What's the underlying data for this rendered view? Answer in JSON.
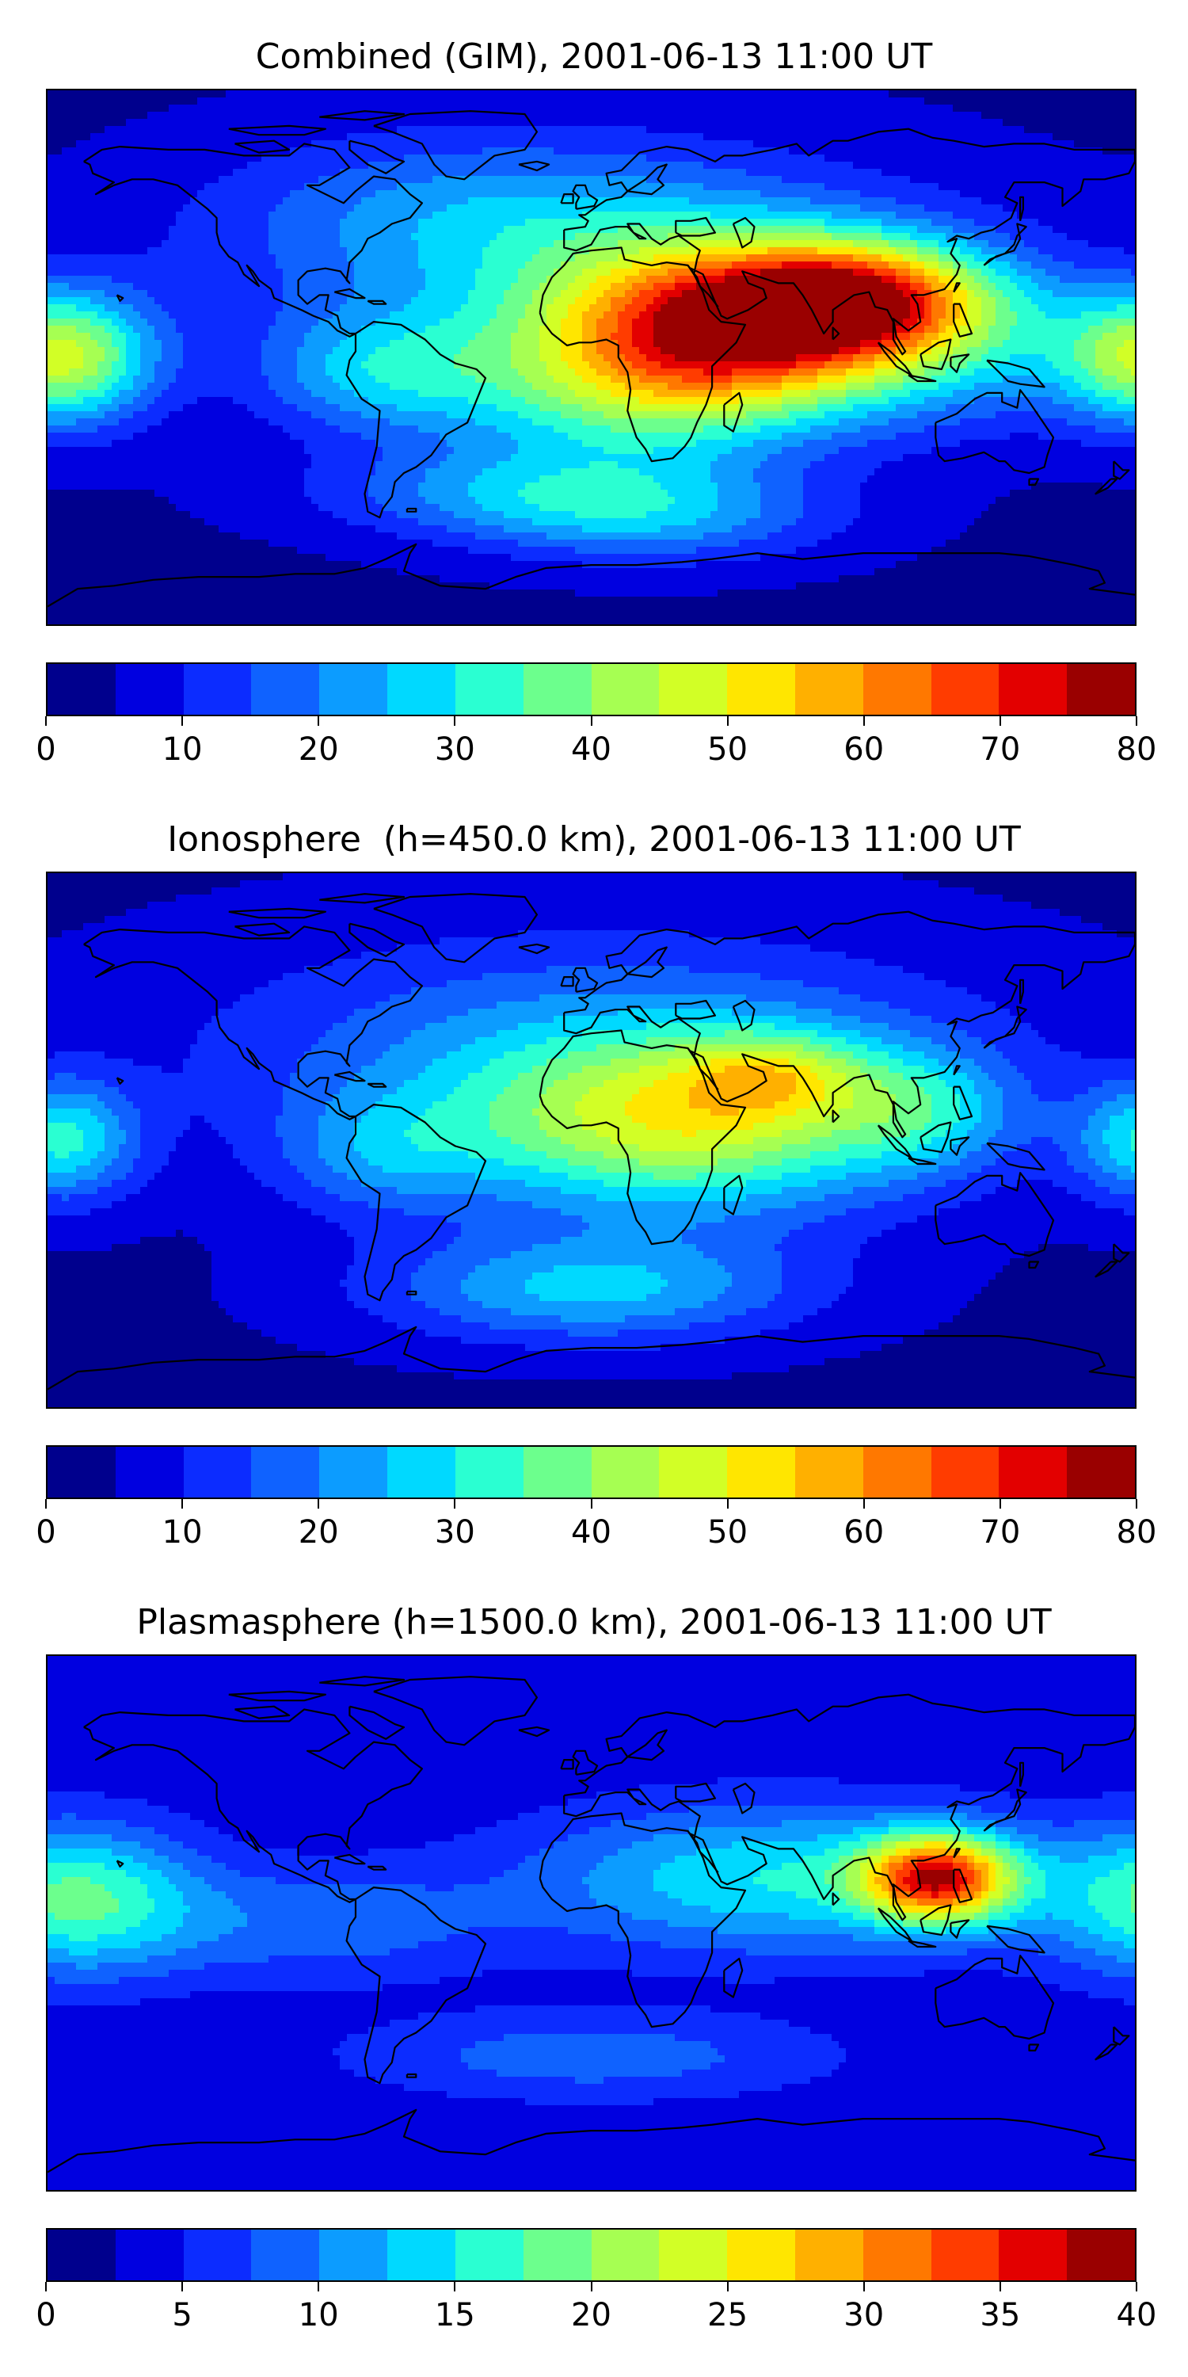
{
  "palette": [
    "#00008d",
    "#0000e0",
    "#0c2cff",
    "#0f62ff",
    "#0c9cff",
    "#00d9ff",
    "#2affd2",
    "#6cff8d",
    "#a6ff52",
    "#d2ff26",
    "#ffe600",
    "#ffb000",
    "#ff7800",
    "#ff3c00",
    "#e30000",
    "#9a0000"
  ],
  "coastline_color": "#000000",
  "panels": [
    {
      "title": "Combined (GIM), 2001-06-13 11:00 UT",
      "map_name": "combined-tec-map",
      "field": {
        "base": 4,
        "blobs": [
          {
            "lon": 45,
            "lat": 10,
            "rlon": 60,
            "rlat": 28,
            "amp": 58
          },
          {
            "lon": 80,
            "lat": 20,
            "rlon": 40,
            "rlat": 18,
            "amp": 22
          },
          {
            "lon": 100,
            "lat": 20,
            "rlon": 45,
            "rlat": 20,
            "amp": 25
          },
          {
            "lon": 10,
            "lat": -15,
            "rlon": 60,
            "rlat": 25,
            "amp": 20
          },
          {
            "lon": 120,
            "lat": 0,
            "rlon": 50,
            "rlat": 25,
            "amp": 12
          },
          {
            "lon": -175,
            "lat": 0,
            "rlon": 30,
            "rlat": 22,
            "amp": 40
          },
          {
            "lon": -70,
            "lat": -5,
            "rlon": 40,
            "rlat": 20,
            "amp": 18
          },
          {
            "lon": -20,
            "lat": -45,
            "rlon": 70,
            "rlat": 15,
            "amp": 16
          },
          {
            "lon": 20,
            "lat": -55,
            "rlon": 60,
            "rlat": 15,
            "amp": 15
          },
          {
            "lon": 0,
            "lat": 30,
            "rlon": 120,
            "rlat": 40,
            "amp": 16
          },
          {
            "lon": -40,
            "lat": 50,
            "rlon": 80,
            "rlat": 25,
            "amp": 10
          }
        ]
      },
      "colorbar": {
        "min": 0,
        "max": 80,
        "ticks": [
          "0",
          "10",
          "20",
          "30",
          "40",
          "50",
          "60",
          "70",
          "80"
        ]
      }
    },
    {
      "title": "Ionosphere  (h=450.0 km), 2001-06-13 11:00 UT",
      "map_name": "ionosphere-tec-map",
      "field": {
        "base": 4,
        "blobs": [
          {
            "lon": 30,
            "lat": 5,
            "rlon": 75,
            "rlat": 30,
            "amp": 36
          },
          {
            "lon": 60,
            "lat": 22,
            "rlon": 30,
            "rlat": 14,
            "amp": 18
          },
          {
            "lon": 110,
            "lat": 10,
            "rlon": 30,
            "rlat": 20,
            "amp": 15
          },
          {
            "lon": -175,
            "lat": 0,
            "rlon": 25,
            "rlat": 20,
            "amp": 26
          },
          {
            "lon": -70,
            "lat": -5,
            "rlon": 35,
            "rlat": 20,
            "amp": 12
          },
          {
            "lon": 0,
            "lat": -50,
            "rlon": 70,
            "rlat": 18,
            "amp": 22
          },
          {
            "lon": 0,
            "lat": 30,
            "rlon": 130,
            "rlat": 40,
            "amp": 16
          }
        ]
      },
      "colorbar": {
        "min": 0,
        "max": 80,
        "ticks": [
          "0",
          "10",
          "20",
          "30",
          "40",
          "50",
          "60",
          "70",
          "80"
        ]
      }
    },
    {
      "title": "Plasmasphere (h=1500.0 km), 2001-06-13 11:00 UT",
      "map_name": "plasmasphere-tec-map",
      "field": {
        "base": 3,
        "blobs": [
          {
            "lon": 115,
            "lat": 15,
            "rlon": 25,
            "rlat": 15,
            "amp": 28
          },
          {
            "lon": 60,
            "lat": 15,
            "rlon": 80,
            "rlat": 25,
            "amp": 12
          },
          {
            "lon": -170,
            "lat": 8,
            "rlon": 40,
            "rlat": 25,
            "amp": 14
          },
          {
            "lon": -90,
            "lat": 0,
            "rlon": 60,
            "rlat": 20,
            "amp": 6
          },
          {
            "lon": 0,
            "lat": -45,
            "rlon": 80,
            "rlat": 15,
            "amp": 6
          }
        ]
      },
      "colorbar": {
        "min": 0,
        "max": 40,
        "ticks": [
          "0",
          "5",
          "10",
          "15",
          "20",
          "25",
          "30",
          "35",
          "40"
        ]
      }
    }
  ]
}
